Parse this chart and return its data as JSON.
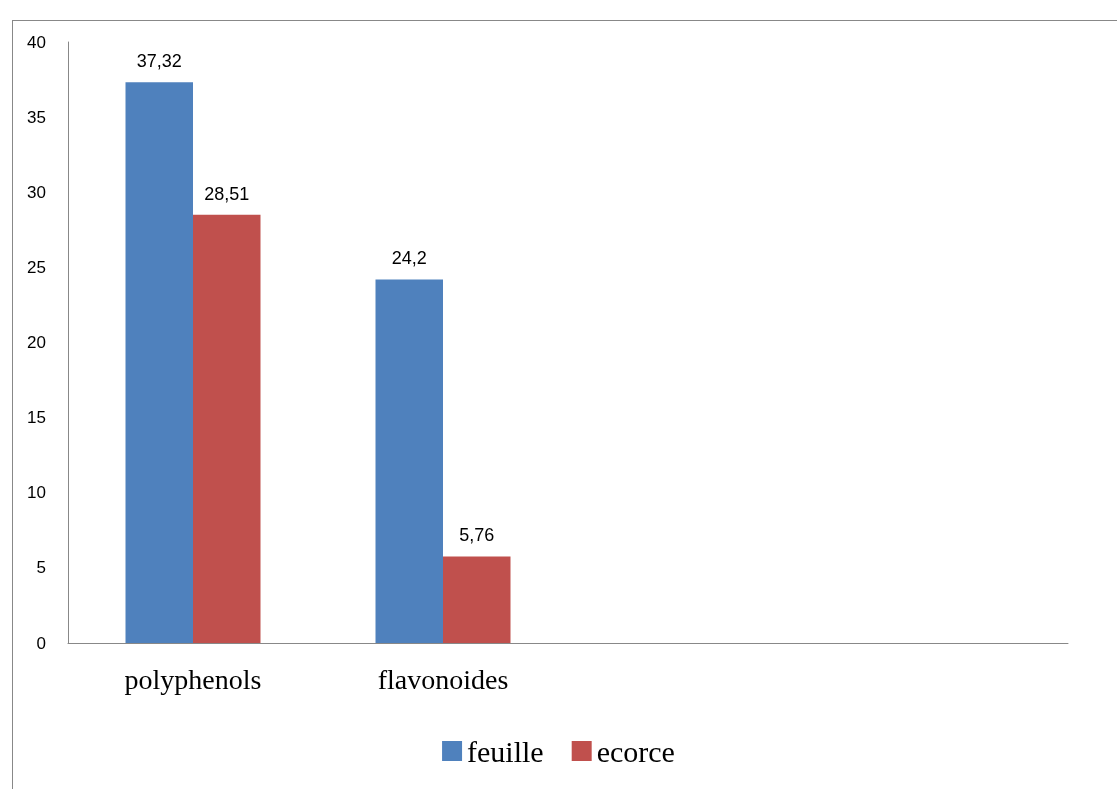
{
  "chart_data": {
    "type": "bar",
    "categories": [
      "polyphenols",
      "flavonoides",
      null,
      null
    ],
    "series": [
      {
        "name": "feuille",
        "color": "#4f81bd",
        "values": [
          37.32,
          24.2,
          null,
          null
        ],
        "value_labels": [
          "37,32",
          "24,2",
          null,
          null
        ]
      },
      {
        "name": "ecorce",
        "color": "#c0504d",
        "values": [
          28.51,
          5.76,
          null,
          null
        ],
        "value_labels": [
          "28,51",
          "5,76",
          null,
          null
        ]
      }
    ],
    "ylim": [
      0,
      40
    ],
    "yticks": [
      0,
      5,
      10,
      15,
      20,
      25,
      30,
      35,
      40
    ],
    "grid": false,
    "legend": "bottom"
  }
}
